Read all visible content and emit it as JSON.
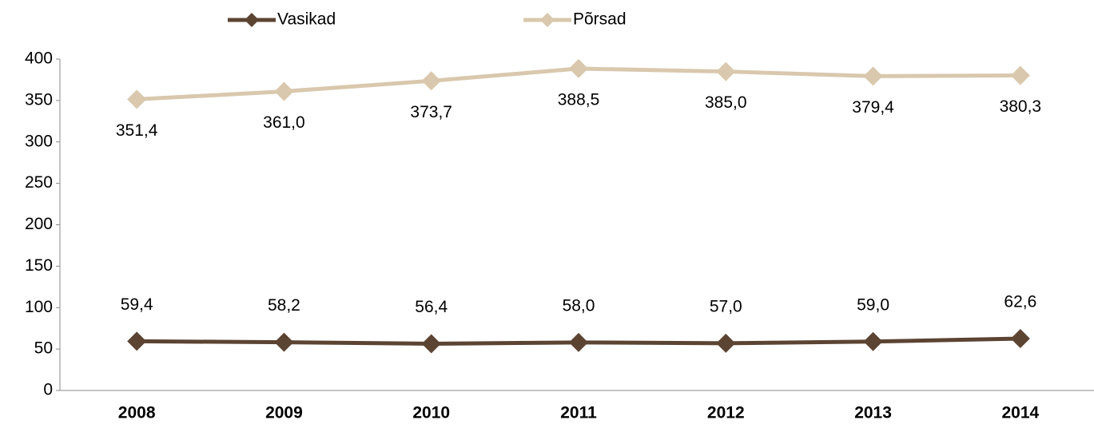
{
  "chart_data": {
    "type": "line",
    "categories": [
      "2008",
      "2009",
      "2010",
      "2011",
      "2012",
      "2013",
      "2014"
    ],
    "series": [
      {
        "name": "Vasikad",
        "color": "#5c4433",
        "values": [
          59.4,
          58.2,
          56.4,
          58.0,
          57.0,
          59.0,
          62.6
        ],
        "value_labels": [
          "59,4",
          "58,2",
          "56,4",
          "58,0",
          "57,0",
          "59,0",
          "62,6"
        ]
      },
      {
        "name": "Põrsad",
        "color": "#d9c8ad",
        "values": [
          351.4,
          361.0,
          373.7,
          388.5,
          385.0,
          379.4,
          380.3
        ],
        "value_labels": [
          "351,4",
          "361,0",
          "373,7",
          "388,5",
          "385,0",
          "379,4",
          "380,3"
        ]
      }
    ],
    "ylim": [
      0,
      400
    ],
    "yticks": [
      0,
      50,
      100,
      150,
      200,
      250,
      300,
      350,
      400
    ],
    "grid": false,
    "legend": "top"
  }
}
